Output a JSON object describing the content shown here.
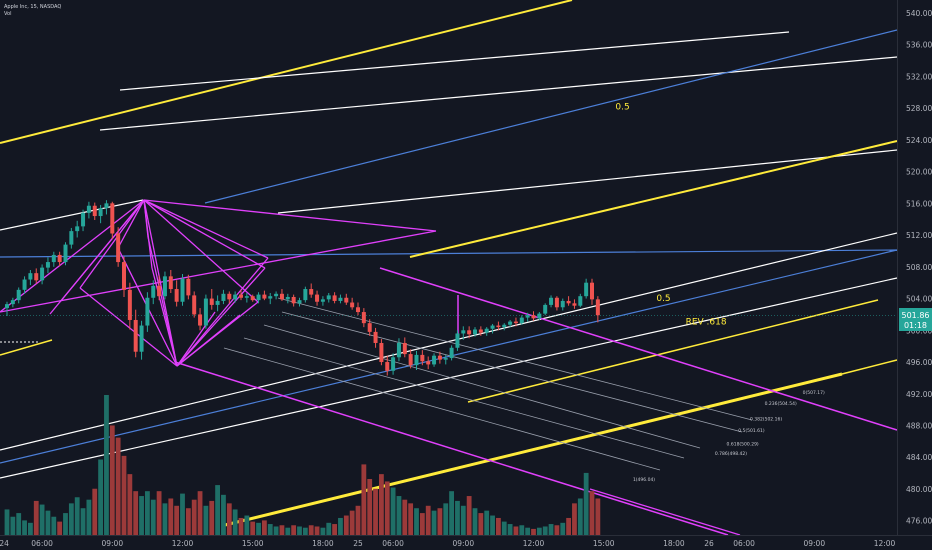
{
  "header": {
    "symbol_line": "Apple Inc, 15, NASDAQ",
    "volume_label": "Vol"
  },
  "colors": {
    "background": "#131722",
    "up": "#26a69a",
    "down": "#ef5350",
    "vol_up": "#1f6f67",
    "vol_down": "#9c3a3a",
    "yellow": "#ffeb3b",
    "white": "#ffffff",
    "blue": "#4c7fd8",
    "magenta": "#e040fb",
    "gray": "#9aa0ad",
    "price_tag_bg": "#26a69a"
  },
  "chart_data": {
    "type": "candlestick",
    "symbol": "Apple Inc",
    "interval": "15",
    "exchange": "NASDAQ",
    "y_axis": {
      "ylim": [
        474.2,
        541.0
      ],
      "ticks": [
        "540.00",
        "536.00",
        "532.00",
        "528.00",
        "524.00",
        "520.00",
        "516.00",
        "512.00",
        "508.00",
        "504.00",
        "500.00",
        "496.00",
        "492.00",
        "488.00",
        "484.00",
        "480.00",
        "476.00"
      ]
    },
    "x_axis": {
      "ticks": [
        {
          "label": "24",
          "bar": -0.5
        },
        {
          "label": "06:00",
          "bar": 6
        },
        {
          "label": "09:00",
          "bar": 18
        },
        {
          "label": "12:00",
          "bar": 30
        },
        {
          "label": "15:00",
          "bar": 42
        },
        {
          "label": "18:00",
          "bar": 54
        },
        {
          "label": "25",
          "bar": 60
        },
        {
          "label": "06:00",
          "bar": 66
        },
        {
          "label": "09:00",
          "bar": 78
        },
        {
          "label": "12:00",
          "bar": 90
        },
        {
          "label": "15:00",
          "bar": 102
        },
        {
          "label": "18:00",
          "bar": 114
        },
        {
          "label": "26",
          "bar": 120
        },
        {
          "label": "06:00",
          "bar": 126
        },
        {
          "label": "09:00",
          "bar": 138
        },
        {
          "label": "12:00",
          "bar": 150
        }
      ]
    },
    "last_price": {
      "value": "501.86",
      "countdown": "01:18"
    },
    "ohlc": [
      [
        502.8,
        503.6,
        501.8,
        503.3
      ],
      [
        503.3,
        504.1,
        502.9,
        503.8
      ],
      [
        503.8,
        505.4,
        503.4,
        505.1
      ],
      [
        505.1,
        506.8,
        504.6,
        506.4
      ],
      [
        506.4,
        507.6,
        505.7,
        507.2
      ],
      [
        507.2,
        507.8,
        505.9,
        506.3
      ],
      [
        506.3,
        508.3,
        505.8,
        507.9
      ],
      [
        507.9,
        509.2,
        507.2,
        508.6
      ],
      [
        508.6,
        509.9,
        508.0,
        509.5
      ],
      [
        509.5,
        509.9,
        508.1,
        508.6
      ],
      [
        508.6,
        511.1,
        508.2,
        510.8
      ],
      [
        510.8,
        512.9,
        510.3,
        512.5
      ],
      [
        512.5,
        513.8,
        511.7,
        513.1
      ],
      [
        513.1,
        515.2,
        512.5,
        514.8
      ],
      [
        514.8,
        516.2,
        514.1,
        515.7
      ],
      [
        515.7,
        516.1,
        513.9,
        514.4
      ],
      [
        514.4,
        515.8,
        513.5,
        515.4
      ],
      [
        515.4,
        516.4,
        514.6,
        516.0
      ],
      [
        516.0,
        516.2,
        511.5,
        512.2
      ],
      [
        512.2,
        513.0,
        508.0,
        508.6
      ],
      [
        508.6,
        509.3,
        504.2,
        505.1
      ],
      [
        505.1,
        506.0,
        500.1,
        501.3
      ],
      [
        501.3,
        502.6,
        496.6,
        497.3
      ],
      [
        497.3,
        501.2,
        496.3,
        500.6
      ],
      [
        500.6,
        504.8,
        499.8,
        504.1
      ],
      [
        504.1,
        506.3,
        503.3,
        505.6
      ],
      [
        505.6,
        506.9,
        503.8,
        504.3
      ],
      [
        504.3,
        507.4,
        503.9,
        506.8
      ],
      [
        506.8,
        507.6,
        504.7,
        505.2
      ],
      [
        505.2,
        506.3,
        503.0,
        503.6
      ],
      [
        503.6,
        507.1,
        503.1,
        506.5
      ],
      [
        506.5,
        507.0,
        503.9,
        504.4
      ],
      [
        504.4,
        504.9,
        501.6,
        502.0
      ],
      [
        502.0,
        502.8,
        500.0,
        500.6
      ],
      [
        500.6,
        504.5,
        500.2,
        504.0
      ],
      [
        504.0,
        505.2,
        502.6,
        503.2
      ],
      [
        503.2,
        504.4,
        502.4,
        503.7
      ],
      [
        503.7,
        505.1,
        503.3,
        504.6
      ],
      [
        504.6,
        504.9,
        503.4,
        503.9
      ],
      [
        503.9,
        504.9,
        503.5,
        504.5
      ],
      [
        504.5,
        505.1,
        503.8,
        504.1
      ],
      [
        504.1,
        504.7,
        503.5,
        504.3
      ],
      [
        504.3,
        504.5,
        503.6,
        503.8
      ],
      [
        503.8,
        504.8,
        503.4,
        504.5
      ],
      [
        504.5,
        505.0,
        503.8,
        504.0
      ],
      [
        504.0,
        504.7,
        503.3,
        504.3
      ],
      [
        504.3,
        504.9,
        503.9,
        504.6
      ],
      [
        504.6,
        505.2,
        503.7,
        503.9
      ],
      [
        503.9,
        504.6,
        503.4,
        504.2
      ],
      [
        504.2,
        504.5,
        503.0,
        503.4
      ],
      [
        503.4,
        504.1,
        503.0,
        503.8
      ],
      [
        503.8,
        505.5,
        503.5,
        505.2
      ],
      [
        505.2,
        505.9,
        504.1,
        504.5
      ],
      [
        504.5,
        505.0,
        503.1,
        503.6
      ],
      [
        503.6,
        504.3,
        503.1,
        503.9
      ],
      [
        503.9,
        504.7,
        503.5,
        504.4
      ],
      [
        504.4,
        504.8,
        503.4,
        503.7
      ],
      [
        503.7,
        504.5,
        503.4,
        504.1
      ],
      [
        504.1,
        504.6,
        503.2,
        503.5
      ],
      [
        503.5,
        504.1,
        502.6,
        502.9
      ],
      [
        502.9,
        503.5,
        501.9,
        502.3
      ],
      [
        502.3,
        502.8,
        500.4,
        500.9
      ],
      [
        500.9,
        501.4,
        499.3,
        499.8
      ],
      [
        499.8,
        500.3,
        497.8,
        498.4
      ],
      [
        498.4,
        498.9,
        495.6,
        496.0
      ],
      [
        496.0,
        496.8,
        494.3,
        494.9
      ],
      [
        494.9,
        497.1,
        494.4,
        496.6
      ],
      [
        496.6,
        499.0,
        496.1,
        498.4
      ],
      [
        498.4,
        499.1,
        496.6,
        497.0
      ],
      [
        497.0,
        497.6,
        495.2,
        495.6
      ],
      [
        495.6,
        497.4,
        495.0,
        496.9
      ],
      [
        496.9,
        497.5,
        495.6,
        496.1
      ],
      [
        496.1,
        496.7,
        495.1,
        495.7
      ],
      [
        495.7,
        497.1,
        495.4,
        496.8
      ],
      [
        496.8,
        497.3,
        495.8,
        496.3
      ],
      [
        496.3,
        496.9,
        495.7,
        496.5
      ],
      [
        496.5,
        498.1,
        496.2,
        497.8
      ],
      [
        497.8,
        500.0,
        497.4,
        499.6
      ],
      [
        499.6,
        500.5,
        498.8,
        500.0
      ],
      [
        500.0,
        500.5,
        499.0,
        499.5
      ],
      [
        499.5,
        500.4,
        499.2,
        500.1
      ],
      [
        500.1,
        500.5,
        499.3,
        499.7
      ],
      [
        499.7,
        500.4,
        499.3,
        500.2
      ],
      [
        500.2,
        500.8,
        499.6,
        500.6
      ],
      [
        500.6,
        501.1,
        500.0,
        500.4
      ],
      [
        500.4,
        500.9,
        500.0,
        500.7
      ],
      [
        500.7,
        501.3,
        500.4,
        501.1
      ],
      [
        501.1,
        501.6,
        500.5,
        500.9
      ],
      [
        500.9,
        501.9,
        500.7,
        501.6
      ],
      [
        501.6,
        502.2,
        501.1,
        501.9
      ],
      [
        501.9,
        502.4,
        501.2,
        501.5
      ],
      [
        501.5,
        502.3,
        501.3,
        502.1
      ],
      [
        502.1,
        503.4,
        501.9,
        503.2
      ],
      [
        503.2,
        504.4,
        502.9,
        504.1
      ],
      [
        504.1,
        504.3,
        502.5,
        502.9
      ],
      [
        502.9,
        504.0,
        502.5,
        503.7
      ],
      [
        503.7,
        504.3,
        503.1,
        503.4
      ],
      [
        503.4,
        503.9,
        502.7,
        503.1
      ],
      [
        503.1,
        504.6,
        502.9,
        504.3
      ],
      [
        504.3,
        506.5,
        504.0,
        506.0
      ],
      [
        506.0,
        506.5,
        503.2,
        503.9
      ],
      [
        503.9,
        504.3,
        501.0,
        501.9
      ]
    ],
    "volume": [
      2.1,
      1.5,
      1.8,
      1.2,
      1.0,
      2.8,
      2.5,
      2.0,
      1.5,
      1.1,
      1.8,
      2.6,
      3.1,
      2.2,
      2.9,
      3.8,
      6.2,
      11.5,
      9.0,
      8.0,
      6.5,
      5.0,
      3.6,
      3.2,
      3.6,
      2.9,
      3.6,
      2.6,
      3.0,
      2.4,
      3.4,
      2.2,
      2.9,
      3.6,
      2.4,
      2.8,
      4.1,
      3.3,
      2.6,
      2.1,
      1.4,
      1.6,
      1.1,
      1.0,
      1.2,
      0.9,
      0.7,
      0.8,
      0.6,
      0.8,
      0.7,
      0.6,
      0.8,
      0.7,
      0.6,
      1.0,
      0.9,
      1.4,
      1.6,
      2.0,
      2.4,
      5.8,
      4.6,
      3.8,
      5.0,
      4.4,
      3.9,
      3.2,
      2.9,
      2.6,
      2.2,
      1.8,
      2.4,
      2.0,
      2.2,
      2.6,
      3.6,
      2.8,
      2.4,
      3.2,
      2.2,
      1.8,
      2.0,
      1.6,
      1.4,
      1.1,
      0.9,
      0.7,
      0.8,
      0.6,
      0.5,
      0.6,
      0.7,
      0.9,
      0.8,
      1.0,
      1.4,
      2.6,
      3.0,
      5.1,
      3.6,
      3.0
    ],
    "annotations": [
      {
        "text": "0.5",
        "price": 527.8,
        "bar": 104
      },
      {
        "text": "0.5",
        "price": 503.7,
        "bar": 111
      },
      {
        "text": "REV .618",
        "price": 500.7,
        "bar": 116
      },
      {
        "text": "0.236(504.54)",
        "price": 490.6,
        "bar": 129.5
      },
      {
        "text": "0.382(502.16)",
        "price": 488.6,
        "bar": 127
      },
      {
        "text": "0.5(501.61)",
        "price": 487.2,
        "bar": 125
      },
      {
        "text": "0.618(500.29)",
        "price": 485.5,
        "bar": 123
      },
      {
        "text": "0.786(498.42)",
        "price": 484.3,
        "bar": 121
      },
      {
        "text": "0(507.17)",
        "price": 492.0,
        "bar": 136
      },
      {
        "text": "1(496.04)",
        "price": 481.0,
        "bar": 107
      }
    ]
  }
}
